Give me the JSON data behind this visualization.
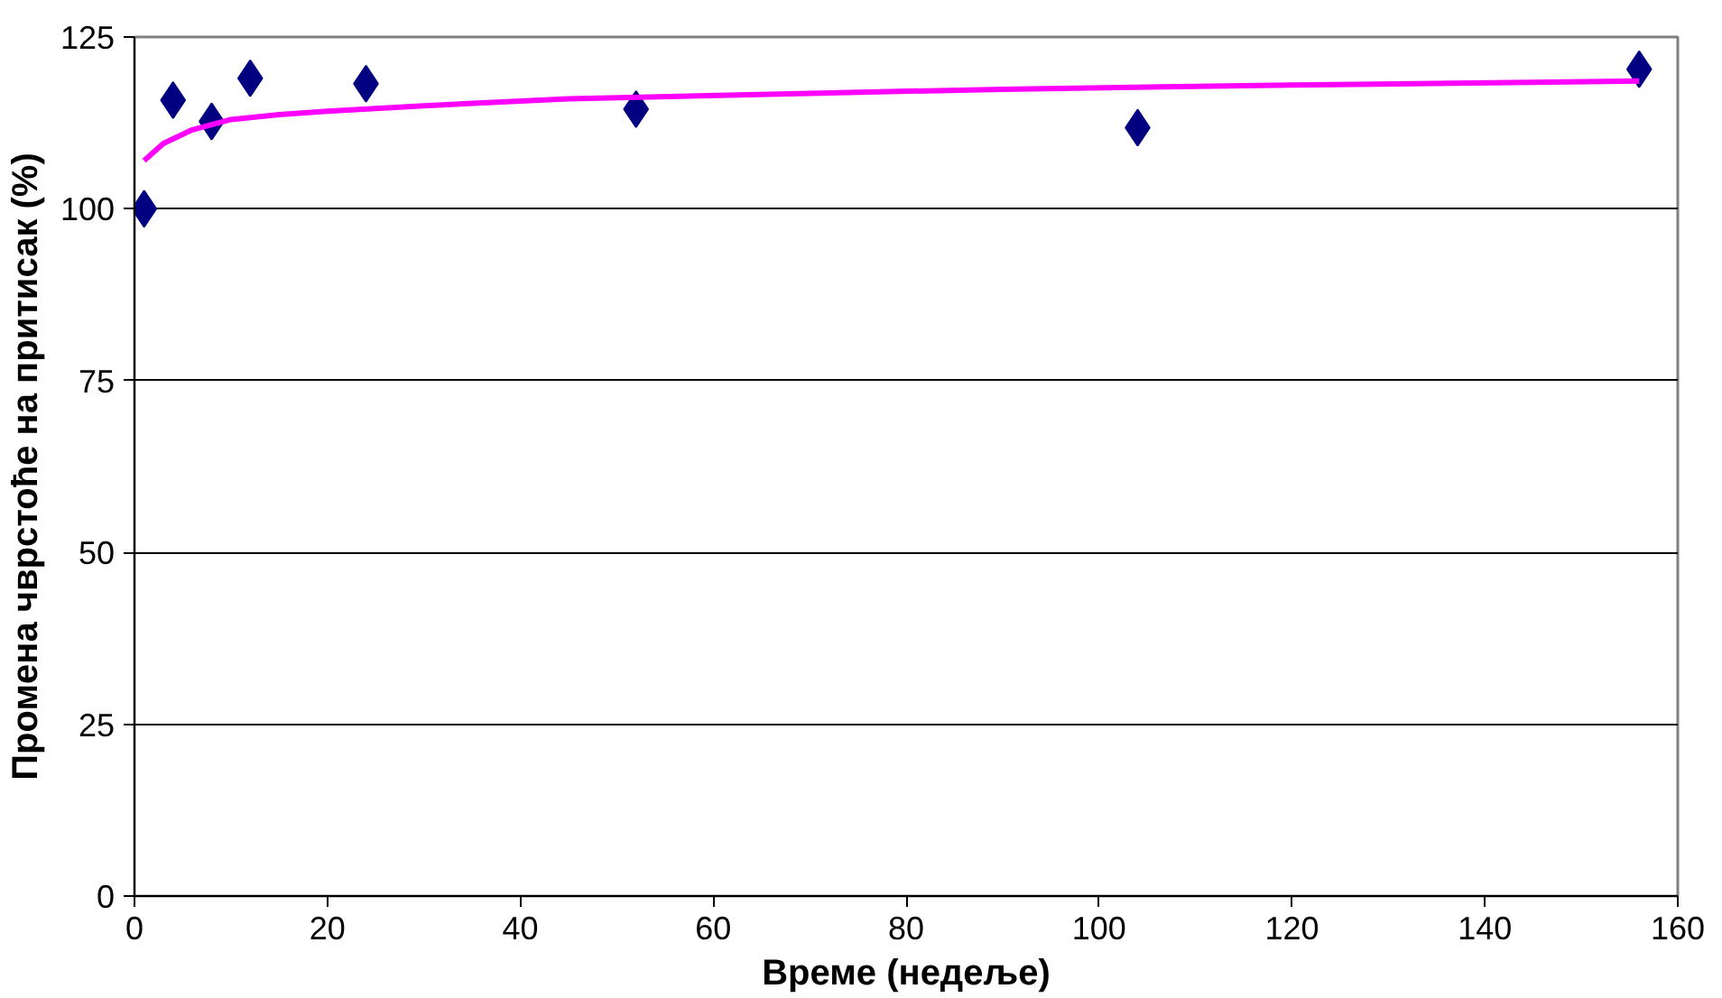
{
  "chart_data": {
    "type": "scatter",
    "xlabel": "Време (недеље)",
    "ylabel": "Промена чврстоће на притисак (%)",
    "x": [
      1,
      4,
      8,
      12,
      24,
      52,
      104,
      156
    ],
    "series": [
      {
        "color": "#000080",
        "marker": "diamond",
        "values": [
          100,
          115.8,
          112.7,
          119,
          118.2,
          114.5,
          111.8,
          120.3
        ]
      },
      {
        "type": "line",
        "color": "#ff00ff",
        "marker": "none",
        "x": [
          1,
          3,
          6,
          10,
          15,
          20,
          30,
          45,
          70,
          90,
          120,
          156
        ],
        "values": [
          107,
          109.5,
          111.5,
          113,
          113.7,
          114.2,
          115,
          116,
          116.8,
          117.4,
          118,
          118.6
        ]
      }
    ],
    "xlim": [
      0,
      160
    ],
    "ylim": [
      0,
      125
    ],
    "xticks": [
      0,
      20,
      40,
      60,
      80,
      100,
      120,
      140,
      160
    ],
    "yticks": [
      0,
      25,
      50,
      75,
      100,
      125
    ],
    "grid": "y"
  }
}
